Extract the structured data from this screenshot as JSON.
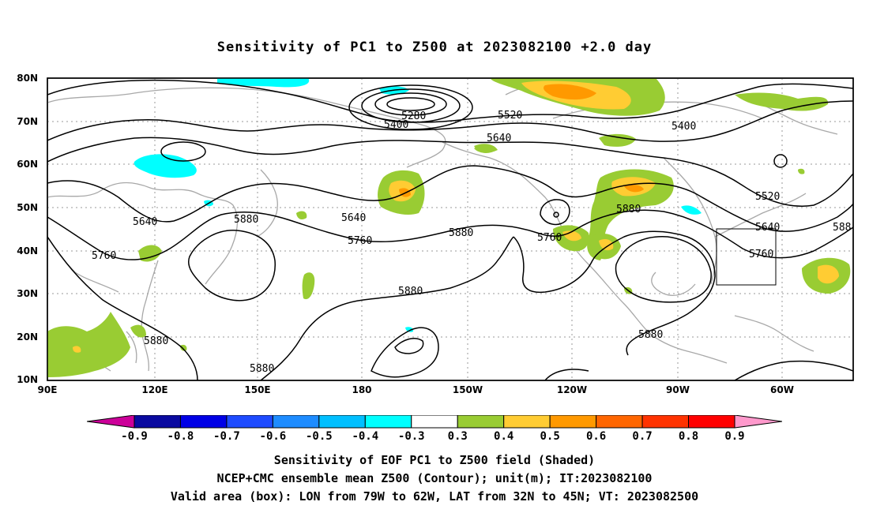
{
  "title": "Sensitivity of PC1 to Z500 at 2023082100 +2.0 day",
  "lat_labels": [
    "80N",
    "70N",
    "60N",
    "50N",
    "40N",
    "30N",
    "20N",
    "10N"
  ],
  "lon_labels": [
    "90E",
    "120E",
    "150E",
    "180",
    "150W",
    "120W",
    "90W",
    "60W"
  ],
  "contour_labels": {
    "c5280": "5280",
    "c5400a": "5400",
    "c5520a": "5520",
    "c5400b": "5400",
    "c5640a": "5640",
    "c5640b": "5640",
    "c5640c": "5640",
    "c5760a": "5760",
    "c5760b": "5760",
    "c5760c": "5760",
    "c5760d": "5760",
    "c5880a": "5880",
    "c5880b": "5880",
    "c5880c": "5880",
    "c5880d": "5880",
    "c5880e": "5880",
    "c5880f": "5880",
    "c5520b": "5520",
    "c5640d": "5640",
    "c588x": "588"
  },
  "colorbar": {
    "labels": [
      "-0.9",
      "-0.8",
      "-0.7",
      "-0.6",
      "-0.5",
      "-0.4",
      "-0.3",
      "0.3",
      "0.4",
      "0.5",
      "0.6",
      "0.7",
      "0.8",
      "0.9"
    ],
    "colors": [
      "#0a0aa0",
      "#0000e6",
      "#1e4bff",
      "#1e8cff",
      "#00bfff",
      "#00ffff",
      "#ffffff",
      "#99cc33",
      "#ffcc33",
      "#ff9900",
      "#ff6600",
      "#ff3300",
      "#ff0000"
    ],
    "low_end": "#cc0099",
    "high_end": "#ff99cc"
  },
  "footer": {
    "line1": "Sensitivity of EOF PC1 to Z500 field (Shaded)",
    "line2": "NCEP+CMC ensemble mean Z500 (Contour); unit(m); IT:2023082100",
    "line3": "Valid area (box): LON from 79W to 62W, LAT from 32N to 45N; VT: 2023082500"
  }
}
